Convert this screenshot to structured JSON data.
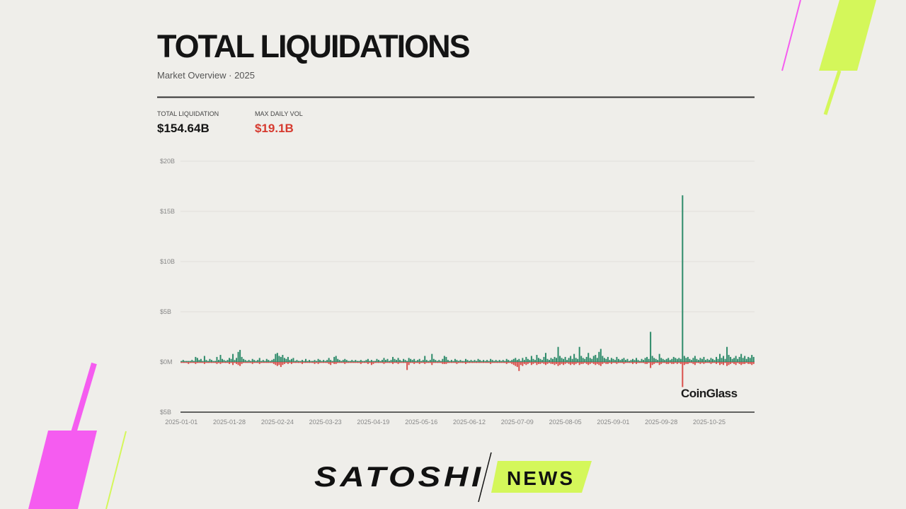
{
  "chart_data": {
    "type": "bar",
    "title": "TOTAL LIQUIDATIONS",
    "subtitle": "Market Overview · 2025",
    "stats": [
      {
        "label": "TOTAL LIQUIDATION",
        "value": "$154.64B"
      },
      {
        "label": "MAX DAILY VOL",
        "value": "$19.1B"
      }
    ],
    "watermark": "CoinGlass",
    "ylim": [
      -5,
      20
    ],
    "yticks": [
      {
        "value": -5,
        "label": "$5B"
      },
      {
        "value": 0,
        "label": "$0M"
      },
      {
        "value": 5,
        "label": "$5B"
      },
      {
        "value": 10,
        "label": "$10B"
      },
      {
        "value": 15,
        "label": "$15B"
      },
      {
        "value": 20,
        "label": "$20B"
      }
    ],
    "grid": true,
    "categories": [
      "2025-01-01",
      null,
      null,
      null,
      null,
      null,
      null,
      null,
      null,
      null,
      null,
      null,
      null,
      null,
      null,
      null,
      null,
      null,
      null,
      null,
      null,
      null,
      null,
      null,
      null,
      null,
      null,
      "2025-01-28",
      null,
      null,
      null,
      null,
      null,
      null,
      null,
      null,
      null,
      null,
      null,
      null,
      null,
      null,
      null,
      null,
      null,
      null,
      null,
      null,
      null,
      null,
      null,
      null,
      null,
      null,
      "2025-02-24",
      null,
      null,
      null,
      null,
      null,
      null,
      null,
      null,
      null,
      null,
      null,
      null,
      null,
      null,
      null,
      null,
      null,
      null,
      null,
      null,
      null,
      null,
      null,
      null,
      null,
      null,
      "2025-03-23",
      null,
      null,
      null,
      null,
      null,
      null,
      null,
      null,
      null,
      null,
      null,
      null,
      null,
      null,
      null,
      null,
      null,
      null,
      null,
      null,
      null,
      null,
      null,
      null,
      null,
      null,
      "2025-04-19",
      null,
      null,
      null,
      null,
      null,
      null,
      null,
      null,
      null,
      null,
      null,
      null,
      null,
      null,
      null,
      null,
      null,
      null,
      null,
      null,
      null,
      null,
      null,
      null,
      null,
      null,
      "2025-05-16",
      null,
      null,
      null,
      null,
      null,
      null,
      null,
      null,
      null,
      null,
      null,
      null,
      null,
      null,
      null,
      null,
      null,
      null,
      null,
      null,
      null,
      null,
      null,
      null,
      null,
      null,
      "2025-06-12",
      null,
      null,
      null,
      null,
      null,
      null,
      null,
      null,
      null,
      null,
      null,
      null,
      null,
      null,
      null,
      null,
      null,
      null,
      null,
      null,
      null,
      null,
      null,
      null,
      null,
      null,
      "2025-07-09",
      null,
      null,
      null,
      null,
      null,
      null,
      null,
      null,
      null,
      null,
      null,
      null,
      null,
      null,
      null,
      null,
      null,
      null,
      null,
      null,
      null,
      null,
      null,
      null,
      null,
      null,
      "2025-08-05",
      null,
      null,
      null,
      null,
      null,
      null,
      null,
      null,
      null,
      null,
      null,
      null,
      null,
      null,
      null,
      null,
      null,
      null,
      null,
      null,
      null,
      null,
      null,
      null,
      null,
      null,
      "2025-09-01",
      null,
      null,
      null,
      null,
      null,
      null,
      null,
      null,
      null,
      null,
      null,
      null,
      null,
      null,
      null,
      null,
      null,
      null,
      null,
      null,
      null,
      null,
      null,
      null,
      null,
      null,
      "2025-09-28",
      null,
      null,
      null,
      null,
      null,
      null,
      null,
      null,
      null,
      null,
      null,
      null,
      null,
      null,
      null,
      null,
      null,
      null,
      null,
      null,
      null,
      null,
      null,
      null,
      null,
      null,
      "2025-10-25",
      null,
      null,
      null,
      null,
      null,
      null,
      null,
      null,
      null,
      null,
      null,
      null,
      null,
      null,
      null,
      null,
      null,
      null,
      null,
      null,
      null,
      null,
      null,
      null,
      null
    ],
    "series": [
      {
        "color": "#2e8b6a",
        "values": [
          0.1,
          0.2,
          0.1,
          0.1,
          0.1,
          0.1,
          0.2,
          0.1,
          0.5,
          0.4,
          0.2,
          0.3,
          0.1,
          0.6,
          0.2,
          0.1,
          0.3,
          0.2,
          0.1,
          0.1,
          0.5,
          0.2,
          0.7,
          0.3,
          0.2,
          0.1,
          0.2,
          0.4,
          0.3,
          0.8,
          0.2,
          0.4,
          1.0,
          1.2,
          0.5,
          0.3,
          0.2,
          0.1,
          0.2,
          0.1,
          0.3,
          0.2,
          0.1,
          0.2,
          0.4,
          0.1,
          0.2,
          0.1,
          0.3,
          0.2,
          0.1,
          0.2,
          0.3,
          0.8,
          0.9,
          0.6,
          0.5,
          0.7,
          0.4,
          0.3,
          0.5,
          0.2,
          0.3,
          0.4,
          0.1,
          0.2,
          0.1,
          0.1,
          0.2,
          0.1,
          0.3,
          0.1,
          0.2,
          0.1,
          0.1,
          0.2,
          0.1,
          0.3,
          0.2,
          0.1,
          0.2,
          0.1,
          0.2,
          0.4,
          0.2,
          0.1,
          0.5,
          0.6,
          0.3,
          0.2,
          0.1,
          0.2,
          0.3,
          0.2,
          0.1,
          0.1,
          0.2,
          0.1,
          0.2,
          0.1,
          0.1,
          0.2,
          0.1,
          0.1,
          0.2,
          0.3,
          0.1,
          0.2,
          0.1,
          0.1,
          0.3,
          0.2,
          0.1,
          0.2,
          0.4,
          0.2,
          0.3,
          0.1,
          0.2,
          0.5,
          0.3,
          0.2,
          0.4,
          0.2,
          0.1,
          0.3,
          0.2,
          0.1,
          0.4,
          0.3,
          0.2,
          0.3,
          0.1,
          0.2,
          0.3,
          0.1,
          0.2,
          0.6,
          0.2,
          0.1,
          0.2,
          0.8,
          0.3,
          0.2,
          0.1,
          0.2,
          0.1,
          0.3,
          0.6,
          0.5,
          0.2,
          0.1,
          0.2,
          0.1,
          0.3,
          0.2,
          0.1,
          0.2,
          0.1,
          0.1,
          0.3,
          0.2,
          0.1,
          0.2,
          0.1,
          0.2,
          0.1,
          0.3,
          0.2,
          0.1,
          0.2,
          0.1,
          0.2,
          0.1,
          0.3,
          0.2,
          0.1,
          0.2,
          0.1,
          0.2,
          0.1,
          0.2,
          0.1,
          0.3,
          0.2,
          0.1,
          0.2,
          0.3,
          0.4,
          0.2,
          0.3,
          0.1,
          0.4,
          0.2,
          0.5,
          0.3,
          0.2,
          0.6,
          0.3,
          0.2,
          0.7,
          0.4,
          0.3,
          0.2,
          0.5,
          0.9,
          0.3,
          0.2,
          0.4,
          0.3,
          0.5,
          0.4,
          1.5,
          0.6,
          0.4,
          0.3,
          0.5,
          0.2,
          0.4,
          0.6,
          0.3,
          0.8,
          0.4,
          0.3,
          1.5,
          0.6,
          0.4,
          0.3,
          0.5,
          0.9,
          0.4,
          0.3,
          0.6,
          0.7,
          0.4,
          1.0,
          1.3,
          0.6,
          0.4,
          0.3,
          0.5,
          0.2,
          0.4,
          0.3,
          0.2,
          0.5,
          0.3,
          0.2,
          0.3,
          0.4,
          0.2,
          0.3,
          0.1,
          0.2,
          0.3,
          0.2,
          0.4,
          0.2,
          0.1,
          0.3,
          0.2,
          0.4,
          0.5,
          0.3,
          3.0,
          0.6,
          0.4,
          0.3,
          0.2,
          0.8,
          0.4,
          0.3,
          0.2,
          0.3,
          0.4,
          0.2,
          0.3,
          0.5,
          0.4,
          0.3,
          0.4,
          0.3,
          16.6,
          0.6,
          0.4,
          0.5,
          0.3,
          0.2,
          0.4,
          0.6,
          0.3,
          0.2,
          0.4,
          0.3,
          0.5,
          0.2,
          0.3,
          0.2,
          0.4,
          0.3,
          0.2,
          0.5,
          0.3,
          0.8,
          0.4,
          0.6,
          0.3,
          1.5,
          0.7,
          0.5,
          0.3,
          0.4,
          0.6,
          0.3,
          0.5,
          0.8,
          0.4,
          0.6,
          0.3,
          0.5,
          0.4,
          0.7,
          0.5
        ]
      },
      {
        "color": "#d9504c",
        "values": [
          -0.1,
          -0.1,
          -0.1,
          -0.1,
          -0.2,
          -0.1,
          -0.1,
          -0.1,
          -0.2,
          -0.1,
          -0.1,
          -0.1,
          -0.1,
          -0.2,
          -0.1,
          -0.1,
          -0.1,
          -0.1,
          -0.1,
          -0.1,
          -0.2,
          -0.1,
          -0.2,
          -0.1,
          -0.1,
          -0.1,
          -0.1,
          -0.2,
          -0.1,
          -0.3,
          -0.1,
          -0.2,
          -0.3,
          -0.4,
          -0.2,
          -0.1,
          -0.1,
          -0.1,
          -0.1,
          -0.1,
          -0.2,
          -0.1,
          -0.1,
          -0.1,
          -0.2,
          -0.1,
          -0.1,
          -0.1,
          -0.1,
          -0.1,
          -0.1,
          -0.1,
          -0.2,
          -0.3,
          -0.4,
          -0.3,
          -0.5,
          -0.3,
          -0.2,
          -0.1,
          -0.2,
          -0.1,
          -0.2,
          -0.1,
          -0.1,
          -0.1,
          -0.1,
          -0.1,
          -0.2,
          -0.1,
          -0.1,
          -0.1,
          -0.1,
          -0.1,
          -0.1,
          -0.2,
          -0.1,
          -0.2,
          -0.1,
          -0.1,
          -0.1,
          -0.1,
          -0.1,
          -0.2,
          -0.3,
          -0.1,
          -0.2,
          -0.2,
          -0.1,
          -0.1,
          -0.1,
          -0.1,
          -0.2,
          -0.1,
          -0.1,
          -0.1,
          -0.1,
          -0.1,
          -0.1,
          -0.1,
          -0.1,
          -0.2,
          -0.1,
          -0.1,
          -0.1,
          -0.2,
          -0.1,
          -0.3,
          -0.2,
          -0.1,
          -0.1,
          -0.1,
          -0.1,
          -0.1,
          -0.2,
          -0.1,
          -0.1,
          -0.1,
          -0.1,
          -0.2,
          -0.1,
          -0.1,
          -0.2,
          -0.1,
          -0.1,
          -0.1,
          -0.1,
          -0.8,
          -0.3,
          -0.1,
          -0.1,
          -0.2,
          -0.1,
          -0.1,
          -0.2,
          -0.1,
          -0.1,
          -0.2,
          -0.1,
          -0.1,
          -0.1,
          -0.3,
          -0.1,
          -0.1,
          -0.1,
          -0.1,
          -0.1,
          -0.2,
          -0.2,
          -0.2,
          -0.1,
          -0.1,
          -0.1,
          -0.1,
          -0.1,
          -0.2,
          -0.1,
          -0.1,
          -0.1,
          -0.1,
          -0.2,
          -0.1,
          -0.1,
          -0.1,
          -0.1,
          -0.1,
          -0.1,
          -0.1,
          -0.1,
          -0.1,
          -0.1,
          -0.1,
          -0.1,
          -0.1,
          -0.2,
          -0.1,
          -0.1,
          -0.1,
          -0.1,
          -0.1,
          -0.1,
          -0.1,
          -0.1,
          -0.2,
          -0.1,
          -0.1,
          -0.2,
          -0.3,
          -0.4,
          -0.5,
          -0.9,
          -0.3,
          -0.4,
          -0.2,
          -0.3,
          -0.2,
          -0.1,
          -0.3,
          -0.2,
          -0.1,
          -0.3,
          -0.2,
          -0.2,
          -0.1,
          -0.2,
          -0.3,
          -0.2,
          -0.1,
          -0.2,
          -0.2,
          -0.3,
          -0.2,
          -0.4,
          -0.3,
          -0.2,
          -0.3,
          -0.2,
          -0.1,
          -0.2,
          -0.3,
          -0.2,
          -0.3,
          -0.2,
          -0.1,
          -0.3,
          -0.2,
          -0.2,
          -0.1,
          -0.2,
          -0.3,
          -0.2,
          -0.1,
          -0.2,
          -0.3,
          -0.2,
          -0.3,
          -0.4,
          -0.2,
          -0.1,
          -0.2,
          -0.2,
          -0.1,
          -0.2,
          -0.1,
          -0.1,
          -0.2,
          -0.1,
          -0.1,
          -0.1,
          -0.2,
          -0.1,
          -0.1,
          -0.1,
          -0.1,
          -0.2,
          -0.1,
          -0.2,
          -0.1,
          -0.1,
          -0.1,
          -0.1,
          -0.2,
          -0.2,
          -0.1,
          -0.6,
          -0.3,
          -0.2,
          -0.1,
          -0.1,
          -0.3,
          -0.2,
          -0.1,
          -0.1,
          -0.2,
          -0.2,
          -0.1,
          -0.2,
          -0.2,
          -0.1,
          -0.2,
          -0.1,
          -0.2,
          -2.5,
          -0.3,
          -0.2,
          -0.2,
          -0.1,
          -0.1,
          -0.2,
          -0.3,
          -0.1,
          -0.1,
          -0.2,
          -0.1,
          -0.2,
          -0.1,
          -0.1,
          -0.1,
          -0.2,
          -0.1,
          -0.1,
          -0.2,
          -0.1,
          -0.3,
          -0.2,
          -0.3,
          -0.1,
          -0.4,
          -0.3,
          -0.2,
          -0.1,
          -0.2,
          -0.3,
          -0.1,
          -0.2,
          -0.3,
          -0.2,
          -0.2,
          -0.1,
          -0.2,
          -0.2,
          -0.3,
          -0.2
        ]
      }
    ]
  },
  "brand": {
    "name": "SATOSHI",
    "tag": "NEWS"
  }
}
